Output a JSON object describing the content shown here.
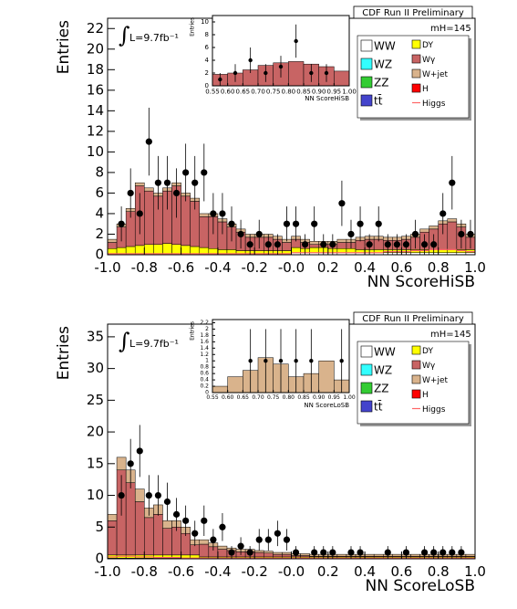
{
  "chart_data": [
    {
      "type": "histogram",
      "title": "CDF Run II Preliminary",
      "ylabel": "Entries",
      "xlabel": "NN ScoreHiSB",
      "lumi_symbol": "∫",
      "lumi": "L=9.7fb⁻¹",
      "mass": "mH=145",
      "legend": "top right",
      "bins": [
        -1,
        -0.95,
        -0.9,
        -0.85,
        -0.8,
        -0.75,
        -0.7,
        -0.65,
        -0.6,
        -0.55,
        -0.5,
        -0.45,
        -0.4,
        -0.35,
        -0.3,
        -0.25,
        -0.2,
        -0.15,
        -0.1,
        -0.05,
        0,
        0.05,
        0.1,
        0.15,
        0.2,
        0.25,
        0.3,
        0.35,
        0.4,
        0.45,
        0.5,
        0.55,
        0.6,
        0.65,
        0.7,
        0.75,
        0.8,
        0.85,
        0.9,
        0.95,
        1
      ],
      "xlim": [
        -1,
        1
      ],
      "ylim": [
        0,
        23
      ],
      "xticks": [
        {
          "value": -1,
          "label": "-1.0"
        },
        -0.8,
        -0.6,
        -0.4,
        -0.2,
        {
          "value": 0,
          "label": "-0.0"
        },
        0.2,
        0.4,
        0.6,
        0.8,
        {
          "value": 1,
          "label": "1.0"
        }
      ],
      "yticks": [
        0,
        2,
        4,
        6,
        8,
        10,
        12,
        14,
        16,
        18,
        20,
        22
      ],
      "series": [
        {
          "name": "WW",
          "color": "#ffffff",
          "values": [
            0.1,
            0.1,
            0.1,
            0.1,
            0.1,
            0.1,
            0.1,
            0.1,
            0.1,
            0.1,
            0.1,
            0.1,
            0.1,
            0.1,
            0.1,
            0.1,
            0.1,
            0.1,
            0.1,
            0.1,
            0.2,
            0.2,
            0.2,
            0.2,
            0.2,
            0.2,
            0.2,
            0.2,
            0.2,
            0.2,
            0.2,
            0.2,
            0.2,
            0.2,
            0.2,
            0.2,
            0.2,
            0.2,
            0.2,
            0.2
          ]
        },
        {
          "name": "WZ",
          "color": "#33ffff"
        },
        {
          "name": "ZZ",
          "color": "#33cc33"
        },
        {
          "name": "tt̄",
          "color": "#4444cc"
        },
        {
          "name": "DY",
          "color": "#ffff00",
          "values": [
            0.5,
            0.6,
            0.7,
            0.8,
            0.9,
            0.9,
            1.0,
            0.9,
            0.8,
            0.7,
            0.6,
            0.5,
            0.4,
            0.4,
            0.3,
            0.3,
            0.3,
            0.3,
            0.3,
            0.3,
            0.5,
            0.4,
            0.5,
            0.5,
            0.4,
            0.4,
            0.4,
            0.3,
            0.3,
            0.3,
            0.3,
            0.3,
            0.3,
            0.3,
            0.3,
            0.3,
            0.3,
            0.3,
            0.3,
            0.3
          ]
        },
        {
          "name": "Wγ",
          "color": "#c86464",
          "values": [
            0.6,
            2.0,
            3.4,
            5.8,
            5.2,
            4.7,
            5.1,
            5.7,
            4.8,
            4.4,
            3.0,
            3.1,
            2.7,
            2.2,
            1.8,
            1.3,
            1.3,
            1.3,
            1.1,
            0.8,
            0.8,
            0.6,
            0.3,
            0.3,
            0.4,
            0.6,
            0.6,
            0.9,
            1.0,
            1.0,
            0.9,
            0.9,
            1.0,
            1.2,
            1.7,
            2.0,
            2.5,
            2.7,
            2.2,
            1.2
          ]
        },
        {
          "name": "W+jet",
          "color": "#d9b38c",
          "values": [
            0.3,
            0.3,
            0.3,
            0.3,
            0.3,
            0.3,
            0.3,
            0.3,
            0.3,
            0.3,
            0.3,
            0.3,
            0.3,
            0.3,
            0.3,
            0.3,
            0.3,
            0.3,
            0.3,
            0.3,
            0.3,
            0.3,
            0.3,
            0.3,
            0.3,
            0.3,
            0.3,
            0.3,
            0.3,
            0.3,
            0.3,
            0.3,
            0.3,
            0.3,
            0.3,
            0.3,
            0.3,
            0.3,
            0.3,
            0.3
          ]
        },
        {
          "name": "H",
          "color": "#ff0000"
        },
        {
          "name": "Higgs",
          "color": "#ff6666",
          "style": "line",
          "values": [
            0.1,
            0.1,
            0.1,
            0.1,
            0.1,
            0.1,
            0.1,
            0.1,
            0.1,
            0.1,
            0.1,
            0.1,
            0.1,
            0.1,
            0.1,
            0.1,
            0.1,
            0.1,
            0.1,
            0.1,
            0.2,
            0.2,
            0.2,
            0.2,
            0.2,
            0.2,
            0.2,
            0.2,
            0.2,
            0.2,
            0.3,
            0.3,
            0.3,
            0.4,
            0.4,
            0.5,
            0.5,
            0.5,
            0.4,
            0.3
          ]
        }
      ],
      "data": {
        "values": [
          null,
          3,
          6,
          4,
          11,
          7,
          7,
          6,
          8,
          7,
          8,
          4,
          4,
          3,
          2,
          1,
          2,
          1,
          1,
          3,
          3,
          1,
          3,
          1,
          1,
          5,
          2,
          3,
          1,
          3,
          1,
          1,
          1,
          2,
          1,
          1,
          4,
          7,
          2,
          2
        ],
        "errors": [
          null,
          1.7,
          2.4,
          2,
          3.3,
          2.6,
          2.6,
          2.4,
          2.8,
          2.6,
          2.8,
          2,
          2,
          1.7,
          1.4,
          1,
          1.4,
          1,
          1,
          1.7,
          1.7,
          1,
          1.7,
          1,
          1,
          2.2,
          1.4,
          1.7,
          1,
          1.7,
          1,
          1,
          1,
          1.4,
          1,
          1,
          2,
          2.6,
          1.4,
          1.4
        ]
      }
    },
    {
      "type": "histogram",
      "ylabel": "Entries",
      "xlabel": "NN ScoreHiSB",
      "bins": [
        0.55,
        0.6,
        0.65,
        0.7,
        0.75,
        0.8,
        0.85,
        0.9,
        0.95,
        1
      ],
      "xlim": [
        0.55,
        1
      ],
      "ylim": [
        0,
        11
      ],
      "xticks": [
        0.55,
        {
          "value": 0.6,
          "label": "0.60"
        },
        0.65,
        {
          "value": 0.7,
          "label": "0.70"
        },
        0.75,
        {
          "value": 0.8,
          "label": "0.80"
        },
        0.85,
        {
          "value": 0.9,
          "label": "0.90"
        },
        0.95,
        {
          "value": 1,
          "label": "1.00"
        }
      ],
      "yticks": [
        0,
        2,
        4,
        6,
        8,
        10
      ],
      "values": [
        1.8,
        2.0,
        2.5,
        3.2,
        3.6,
        3.8,
        3.4,
        3.0,
        2.3
      ],
      "color": "#c86464",
      "data": {
        "values": [
          1,
          2,
          4,
          2,
          3,
          7,
          2,
          2,
          null
        ],
        "errors": [
          1,
          1.4,
          2,
          1.4,
          1.7,
          2.6,
          1.4,
          1.4,
          null
        ]
      }
    },
    {
      "type": "histogram",
      "title": "CDF Run II Preliminary",
      "ylabel": "Entries",
      "xlabel": "NN ScoreLoSB",
      "lumi_symbol": "∫",
      "lumi": "L=9.7fb⁻¹",
      "mass": "mH=145",
      "legend": "top right",
      "bins": [
        -1,
        -0.95,
        -0.9,
        -0.85,
        -0.8,
        -0.75,
        -0.7,
        -0.65,
        -0.6,
        -0.55,
        -0.5,
        -0.45,
        -0.4,
        -0.35,
        -0.3,
        -0.25,
        -0.2,
        -0.15,
        -0.1,
        -0.05,
        0,
        0.05,
        0.1,
        0.15,
        0.2,
        0.25,
        0.3,
        0.35,
        0.4,
        0.45,
        0.5,
        0.55,
        0.6,
        0.65,
        0.7,
        0.75,
        0.8,
        0.85,
        0.9,
        0.95,
        1
      ],
      "xlim": [
        -1,
        1
      ],
      "ylim": [
        0,
        37
      ],
      "xticks": [
        {
          "value": -1,
          "label": "-1.0"
        },
        -0.8,
        -0.6,
        -0.4,
        -0.2,
        {
          "value": 0,
          "label": "-0.0"
        },
        0.2,
        0.4,
        0.6,
        0.8,
        {
          "value": 1,
          "label": "1.0"
        }
      ],
      "yticks": [
        0,
        5,
        10,
        15,
        20,
        25,
        30,
        35
      ],
      "series": [
        {
          "name": "WW",
          "color": "#ffffff",
          "values": [
            0.1,
            0.1,
            0.1,
            0.1,
            0.1,
            0.1,
            0.1,
            0.1,
            0.1,
            0.1,
            0.1,
            0.1,
            0.1,
            0.1,
            0.1,
            0.1,
            0.1,
            0.1,
            0.1,
            0.1,
            0.1,
            0.1,
            0.1,
            0.1,
            0.1,
            0.1,
            0.1,
            0.1,
            0.1,
            0.1,
            0.1,
            0.1,
            0.1,
            0.1,
            0.1,
            0.1,
            0.1,
            0.1,
            0.1,
            0.1
          ]
        },
        {
          "name": "WZ",
          "color": "#33ffff"
        },
        {
          "name": "ZZ",
          "color": "#33cc33"
        },
        {
          "name": "tt̄",
          "color": "#4444cc"
        },
        {
          "name": "DY",
          "color": "#ffff00",
          "values": [
            0.5,
            0.5,
            0.5,
            0.5,
            0.5,
            0.5,
            0.5,
            0.5,
            0.5,
            0.5,
            0.2,
            0.2,
            0.2,
            0.2,
            0.2,
            0.2,
            0.2,
            0.2,
            0.2,
            0.2,
            0.2,
            0.2,
            0.2,
            0.2,
            0.2,
            0.2,
            0.2,
            0.2,
            0.2,
            0.2,
            0.2,
            0.2,
            0.2,
            0.2,
            0.2,
            0.2,
            0.2,
            0.2,
            0.2,
            0.2
          ]
        },
        {
          "name": "Wγ",
          "color": "#c86464",
          "values": [
            5.4,
            13.4,
            11.4,
            8.4,
            5.9,
            6.4,
            4.2,
            4.4,
            3.4,
            1.6,
            2.0,
            1.6,
            1.2,
            1.0,
            0.8,
            0.8,
            0.7,
            0.6,
            0.4,
            0.4,
            0.2,
            0.2,
            0.1,
            0.1,
            0.1,
            0.1,
            0.1,
            0.1,
            0.1,
            0.1,
            0.1,
            0.1,
            0.1,
            0.1,
            0.1,
            0.1,
            0.1,
            0.1,
            0.1,
            0.1
          ]
        },
        {
          "name": "W+jet",
          "color": "#d9b38c",
          "values": [
            1,
            2,
            2,
            2,
            1.5,
            1.5,
            1.2,
            1,
            1,
            0.8,
            0.7,
            0.6,
            0.5,
            0.4,
            0.4,
            0.4,
            0.3,
            0.3,
            0.3,
            0.3,
            0.3,
            0.3,
            0.3,
            0.3,
            0.3,
            0.3,
            0.3,
            0.3,
            0.3,
            0.3,
            0.3,
            0.3,
            0.3,
            0.3,
            0.3,
            0.3,
            0.3,
            0.3,
            0.3,
            0.3
          ]
        },
        {
          "name": "H",
          "color": "#ff0000"
        },
        {
          "name": "Higgs",
          "color": "#ff6666",
          "style": "line",
          "values": [
            0.3,
            0.4,
            0.4,
            0.3,
            0.3,
            0.2,
            0.2,
            0.2,
            0.1,
            0.1,
            0.1,
            0.1,
            0.1,
            0.1,
            0.1,
            0.1,
            0.1,
            0.1,
            0.1,
            0.1,
            0.1,
            0.1,
            0.1,
            0.1,
            0.1,
            0.1,
            0.1,
            0.1,
            0.1,
            0.1,
            0.1,
            0.1,
            0.1,
            0.1,
            0.1,
            0.1,
            0.1,
            0.1,
            0.1,
            0.1
          ]
        }
      ],
      "data": {
        "values": [
          null,
          10,
          15,
          17,
          10,
          10,
          9,
          7,
          6,
          4,
          6,
          3,
          5,
          1,
          2,
          1,
          3,
          3,
          4,
          3,
          1,
          null,
          1,
          1,
          1,
          null,
          1,
          1,
          null,
          null,
          1,
          null,
          1,
          null,
          1,
          1,
          1,
          1,
          1,
          null
        ],
        "errors": [
          null,
          3.2,
          3.9,
          4.1,
          3.2,
          3.2,
          3,
          2.6,
          2.4,
          2,
          2.4,
          1.7,
          2.2,
          1,
          1.4,
          1,
          1.7,
          1.7,
          2,
          1.7,
          1,
          null,
          1,
          1,
          1,
          null,
          1,
          1,
          null,
          null,
          1,
          null,
          1,
          null,
          1,
          1,
          1,
          1,
          1,
          null
        ]
      }
    },
    {
      "type": "histogram",
      "ylabel": "Entries",
      "xlabel": "NN ScoreLoSB",
      "bins": [
        0.55,
        0.6,
        0.65,
        0.7,
        0.75,
        0.8,
        0.85,
        0.9,
        0.95,
        1
      ],
      "xlim": [
        0.55,
        1
      ],
      "ylim": [
        0,
        2.3
      ],
      "xticks": [
        0.55,
        {
          "value": 0.6,
          "label": "0.60"
        },
        0.65,
        {
          "value": 0.7,
          "label": "0.70"
        },
        0.75,
        {
          "value": 0.8,
          "label": "0.80"
        },
        0.85,
        {
          "value": 0.9,
          "label": "0.90"
        },
        0.95,
        {
          "value": 1,
          "label": "1.00"
        }
      ],
      "yticks": [
        0,
        0.2,
        0.4,
        0.6,
        0.8,
        1,
        1.2,
        1.4,
        1.6,
        1.8,
        2,
        2.2
      ],
      "values": [
        0.2,
        0.5,
        0.7,
        1.1,
        0.9,
        0.5,
        0.6,
        1.0,
        0.4
      ],
      "color": "#d9b38c",
      "data": {
        "values": [
          null,
          null,
          1,
          1,
          1,
          1,
          1,
          null,
          1
        ],
        "errors": [
          null,
          null,
          1,
          1,
          1,
          1,
          1,
          null,
          1
        ]
      }
    }
  ]
}
